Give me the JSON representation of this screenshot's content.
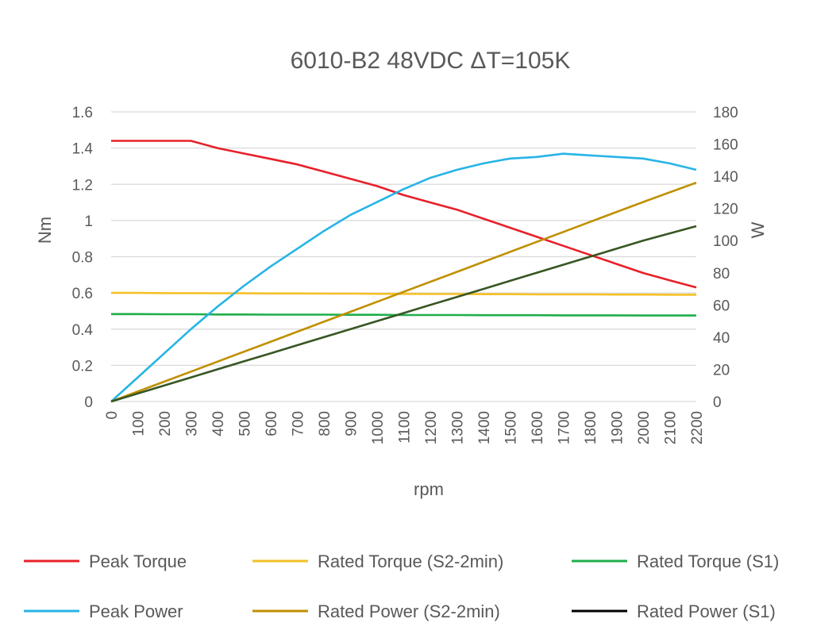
{
  "chart_data": {
    "type": "line",
    "title": "6010-B2 48VDC ΔT=105K",
    "xlabel": "rpm",
    "ylabel_left": "Nm",
    "ylabel_right": "W",
    "x": [
      0,
      100,
      200,
      300,
      400,
      500,
      600,
      700,
      800,
      900,
      1000,
      1100,
      1200,
      1300,
      1400,
      1500,
      1600,
      1700,
      1800,
      1900,
      2000,
      2100,
      2200
    ],
    "x_tick_labels": [
      "0",
      "100",
      "200",
      "300",
      "400",
      "500",
      "600",
      "700",
      "800",
      "900",
      "1000",
      "1100",
      "1200",
      "1300",
      "1400",
      "1500",
      "1600",
      "1700",
      "1800",
      "1900",
      "2000",
      "2100",
      "2200"
    ],
    "y_left_ticks": [
      "0",
      "0.2",
      "0.4",
      "0.6",
      "0.8",
      "1",
      "1.2",
      "1.4",
      "1.6"
    ],
    "y_right_ticks": [
      "0",
      "20",
      "40",
      "60",
      "80",
      "100",
      "120",
      "140",
      "160",
      "180"
    ],
    "ylim_left": [
      0,
      1.6
    ],
    "ylim_right": [
      0,
      180
    ],
    "grid": true,
    "legend_position": "bottom",
    "series": [
      {
        "name": "Peak Torque",
        "axis": "left",
        "color": "#e8202a",
        "values": [
          1.44,
          1.44,
          1.44,
          1.44,
          1.4,
          1.37,
          1.34,
          1.31,
          1.27,
          1.23,
          1.19,
          1.14,
          1.1,
          1.06,
          1.01,
          0.96,
          0.91,
          0.86,
          0.81,
          0.76,
          0.71,
          0.67,
          0.63
        ]
      },
      {
        "name": "Rated Torque (S2-2min)",
        "axis": "left",
        "color": "#f5c027",
        "values": [
          0.6,
          0.6,
          0.599,
          0.599,
          0.598,
          0.598,
          0.597,
          0.597,
          0.596,
          0.596,
          0.595,
          0.595,
          0.594,
          0.594,
          0.593,
          0.593,
          0.592,
          0.592,
          0.592,
          0.591,
          0.591,
          0.59,
          0.59
        ]
      },
      {
        "name": "Rated Torque (S1)",
        "axis": "left",
        "color": "#1fae4b",
        "values": [
          0.483,
          0.483,
          0.482,
          0.482,
          0.481,
          0.481,
          0.48,
          0.48,
          0.48,
          0.479,
          0.479,
          0.478,
          0.478,
          0.478,
          0.477,
          0.477,
          0.477,
          0.476,
          0.476,
          0.476,
          0.475,
          0.475,
          0.475
        ]
      },
      {
        "name": "Peak Power",
        "axis": "right",
        "color": "#27b4e6",
        "values": [
          0,
          15,
          30,
          45,
          59,
          72,
          84,
          95,
          106,
          116,
          124,
          132,
          139,
          144,
          148,
          151,
          152,
          154,
          153,
          152,
          151,
          148,
          144
        ]
      },
      {
        "name": "Rated Power (S2-2min)",
        "axis": "right",
        "color": "#bf9000",
        "values": [
          0,
          6.2,
          12.4,
          18.6,
          24.8,
          31,
          37.2,
          43.4,
          49.6,
          55.8,
          62,
          68.2,
          74.4,
          80.6,
          86.8,
          93,
          99.2,
          105.4,
          111.6,
          117.8,
          124,
          130,
          136
        ]
      },
      {
        "name": "Rated Power (S1)",
        "axis": "right",
        "color": "#375623",
        "values": [
          0,
          5,
          10,
          15,
          20,
          25,
          30,
          35,
          40,
          45,
          50,
          55,
          60,
          65,
          70,
          75,
          80,
          85,
          90,
          95,
          100,
          104.5,
          109
        ]
      }
    ],
    "legend_black_entry_color": "#000000"
  }
}
